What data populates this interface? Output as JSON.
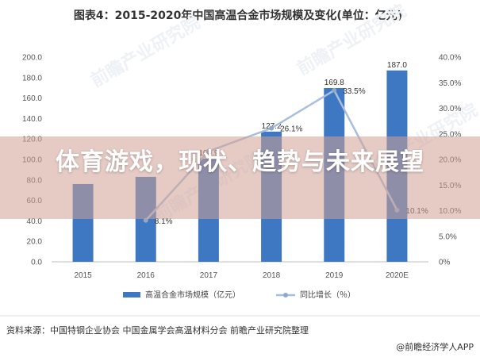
{
  "chart_data": {
    "type": "bar",
    "title": "图表4：2015-2020年中国高温合金市场规模及变化(单位：亿元)",
    "categories": [
      "2015",
      "2016",
      "2017",
      "2018",
      "2019",
      "2020E"
    ],
    "series": [
      {
        "name": "高温合金市场规模（亿元）",
        "type": "bar",
        "axis": "left",
        "color": "#3F78C2",
        "values": [
          76.0,
          83.0,
          100.9,
          127.2,
          169.8,
          187.0
        ],
        "labels": [
          "",
          "",
          "100.9",
          "127.2",
          "169.8",
          "187.0"
        ]
      },
      {
        "name": "同比增长（％）",
        "type": "line",
        "axis": "right",
        "color": "#A9BEDC",
        "values": [
          null,
          8.1,
          21.6,
          26.1,
          33.5,
          10.1
        ],
        "labels": [
          "",
          "8.1%",
          "",
          "26.1%",
          "33.5%",
          "10.1%"
        ]
      }
    ],
    "y_left": {
      "ylim": [
        0,
        200
      ],
      "ticks": [
        "0.0",
        "20.0",
        "40.0",
        "60.0",
        "80.0",
        "100.0",
        "120.0",
        "140.0",
        "160.0",
        "180.0",
        "200.0"
      ]
    },
    "y_right": {
      "ylim": [
        0,
        40
      ],
      "ticks": [
        "0%",
        "5.0%",
        "10.0%",
        "15.0%",
        "20.0%",
        "25.0%",
        "30.0%",
        "35.0%",
        "40.0%"
      ]
    },
    "legend_position": "bottom",
    "grid": false
  },
  "watermark": "前瞻产业研究院",
  "source_note": "资料来源：中国特钢企业协会 中国金属学会高温材料分会 前瞻产业研究院整理",
  "brand": "@前瞻经济学人APP",
  "overlay": {
    "title": "体育游戏，现状、趋势与未来展望"
  }
}
